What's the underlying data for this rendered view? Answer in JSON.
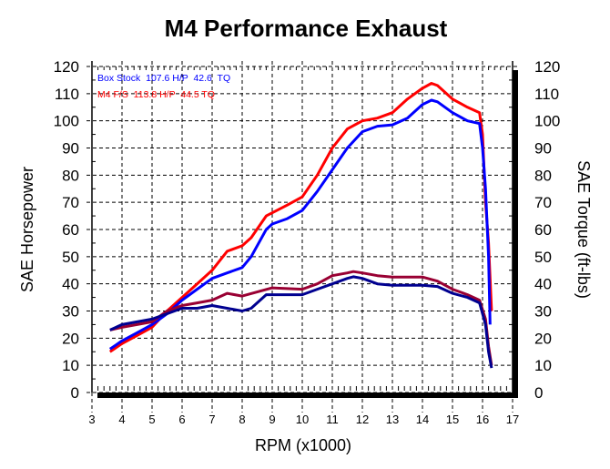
{
  "chart_data": {
    "type": "line",
    "title": "M4 Performance Exhaust",
    "xlabel": "RPM (x1000)",
    "ylabel_left": "SAE Horsepower",
    "ylabel_right": "SAE Torque (ft-lbs)",
    "xlim": [
      3,
      17
    ],
    "ylim": [
      0,
      120
    ],
    "x_ticks": [
      3,
      4,
      5,
      6,
      7,
      8,
      9,
      10,
      11,
      12,
      13,
      14,
      15,
      16,
      17
    ],
    "y_ticks": [
      0,
      10,
      20,
      30,
      40,
      50,
      60,
      70,
      80,
      90,
      100,
      110,
      120
    ],
    "grid": true,
    "legend_placement": "top-left",
    "legend": [
      {
        "label": "Box Stock  107.6 H/P  42.6  TQ",
        "color": "#0000ff"
      },
      {
        "label": "M4 F/S  113.8 H/P  44.5 TQ",
        "color": "#ff0000"
      }
    ],
    "series": [
      {
        "color": "#ff0000",
        "x": [
          3.6,
          4,
          4.5,
          5,
          5.5,
          6,
          6.5,
          7,
          7.5,
          8,
          8.3,
          8.8,
          9.5,
          10,
          10.5,
          11,
          11.5,
          12,
          12.5,
          13,
          13.5,
          14,
          14.3,
          14.5,
          15,
          15.5,
          15.9,
          16.0,
          16.1,
          16.2,
          16.3
        ],
        "y": [
          15,
          18,
          21,
          24,
          30,
          35,
          40,
          45,
          52,
          54,
          57,
          65,
          69,
          72,
          80,
          90,
          97,
          100,
          101,
          103,
          108,
          112,
          113.8,
          113,
          108,
          105,
          103,
          95,
          70,
          55,
          30
        ]
      },
      {
        "color": "#0000ff",
        "x": [
          3.6,
          4,
          4.5,
          5,
          5.5,
          6,
          6.5,
          7,
          7.5,
          8,
          8.3,
          8.8,
          9,
          9.5,
          10,
          10.5,
          11,
          11.5,
          12,
          12.5,
          13,
          13.5,
          14,
          14.3,
          14.5,
          15,
          15.5,
          15.9,
          16.0,
          16.1,
          16.2,
          16.25
        ],
        "y": [
          16,
          19,
          22,
          25,
          29,
          34,
          38,
          42,
          44,
          46,
          50,
          60,
          62,
          64,
          67,
          74,
          82,
          90,
          96,
          98,
          98.5,
          101,
          106,
          107.6,
          107,
          103,
          100,
          99,
          90,
          75,
          50,
          25
        ]
      },
      {
        "color": "#990033",
        "x": [
          3.6,
          4,
          4.5,
          5,
          5.5,
          6,
          6.5,
          7,
          7.5,
          8,
          8.5,
          9,
          10,
          10.5,
          11,
          11.5,
          11.7,
          12,
          12.5,
          13,
          14,
          14.5,
          15,
          15.5,
          15.9,
          16.1,
          16.2,
          16.3
        ],
        "y": [
          23,
          24,
          25,
          26,
          30,
          32,
          33,
          34,
          36.5,
          35.5,
          37,
          38.5,
          38,
          40,
          43,
          44,
          44.5,
          44,
          43,
          42.5,
          42.5,
          41,
          38,
          36,
          34,
          27,
          17,
          10
        ]
      },
      {
        "color": "#000090",
        "x": [
          3.6,
          4,
          4.5,
          5,
          5.5,
          6,
          6.5,
          7,
          7.5,
          8,
          8.3,
          8.8,
          9.5,
          10,
          10.5,
          11,
          11.5,
          11.7,
          12,
          12.5,
          13,
          14,
          14.5,
          15,
          15.5,
          15.9,
          16.1,
          16.2,
          16.3
        ],
        "y": [
          23,
          25,
          26,
          27,
          29,
          31,
          31,
          32,
          31,
          30,
          31,
          36,
          36,
          36,
          38,
          40,
          42,
          42.6,
          42,
          40,
          39.5,
          39.5,
          39,
          36.5,
          35,
          33,
          25,
          15,
          9
        ]
      }
    ]
  }
}
